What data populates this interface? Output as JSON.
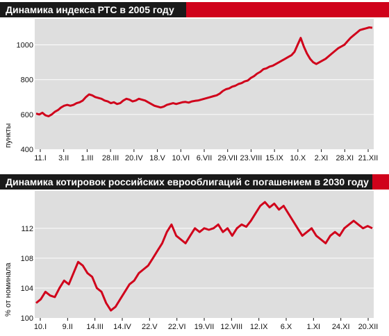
{
  "colors": {
    "header_bg": "#1a1a1a",
    "accent": "#d0021b",
    "line": "#d0021b",
    "plot_bg": "#dedede",
    "grid": "#ffffff"
  },
  "chart_data": [
    {
      "type": "line",
      "title": "Динамика индекса РТС в 2005 году",
      "ylabel": "пункты",
      "xlabel": "",
      "ylim": [
        400,
        1150
      ],
      "y_ticks": [
        400,
        600,
        800,
        1000
      ],
      "grid": true,
      "x_tick_labels": [
        "11.I",
        "3.II",
        "1.III",
        "28.III",
        "20.IV",
        "18.V",
        "10.VI",
        "6.VII",
        "29.VII",
        "23.VIII",
        "15.IX",
        "10.X",
        "2.XI",
        "28.XI",
        "21.XII"
      ],
      "series": [
        {
          "values": [
            605,
            600,
            610,
            595,
            590,
            600,
            615,
            625,
            640,
            650,
            655,
            650,
            655,
            665,
            670,
            680,
            700,
            715,
            710,
            700,
            695,
            690,
            680,
            675,
            665,
            670,
            660,
            665,
            680,
            690,
            685,
            675,
            680,
            690,
            685,
            680,
            670,
            660,
            650,
            645,
            640,
            645,
            655,
            660,
            665,
            660,
            665,
            670,
            672,
            668,
            675,
            678,
            680,
            685,
            690,
            695,
            700,
            705,
            710,
            720,
            735,
            745,
            750,
            760,
            765,
            775,
            780,
            790,
            795,
            810,
            820,
            835,
            845,
            860,
            865,
            875,
            880,
            890,
            900,
            910,
            920,
            930,
            940,
            960,
            1000,
            1040,
            990,
            950,
            920,
            900,
            890,
            900,
            910,
            920,
            935,
            950,
            965,
            980,
            990,
            1000,
            1020,
            1040,
            1055,
            1070,
            1085,
            1090,
            1095,
            1100,
            1098
          ]
        }
      ]
    },
    {
      "type": "line",
      "title": "Динамика котировок российских еврооблигаций с погашением в 2030 году",
      "ylabel": "% от номинала",
      "xlabel": "",
      "ylim": [
        100,
        117
      ],
      "y_ticks": [
        100,
        104,
        108,
        112
      ],
      "grid": true,
      "x_tick_labels": [
        "10.I",
        "9.II",
        "14.III",
        "14.IV",
        "22.V",
        "22.VI",
        "19.VII",
        "12.VIII",
        "12.IX",
        "6.X",
        "1.XI",
        "24.XI",
        "20.XII"
      ],
      "series": [
        {
          "values": [
            102,
            102.5,
            103.5,
            103,
            102.8,
            104,
            105,
            104.5,
            106,
            107.5,
            107,
            106,
            105.5,
            104,
            103.5,
            102,
            101,
            101.5,
            102.5,
            103.5,
            104.5,
            105,
            106,
            106.5,
            107,
            108,
            109,
            110,
            111.5,
            112.5,
            111,
            110.5,
            110,
            111,
            112,
            111.5,
            112,
            111.8,
            112,
            112.5,
            111.5,
            112,
            111,
            112,
            112.5,
            112.2,
            113,
            114,
            115,
            115.5,
            114.8,
            115.3,
            114.5,
            115,
            114,
            113,
            112,
            111,
            111.5,
            112,
            111,
            110.5,
            110,
            111,
            111.5,
            111,
            112,
            112.5,
            113,
            112.5,
            112,
            112.3,
            112
          ]
        }
      ]
    }
  ]
}
